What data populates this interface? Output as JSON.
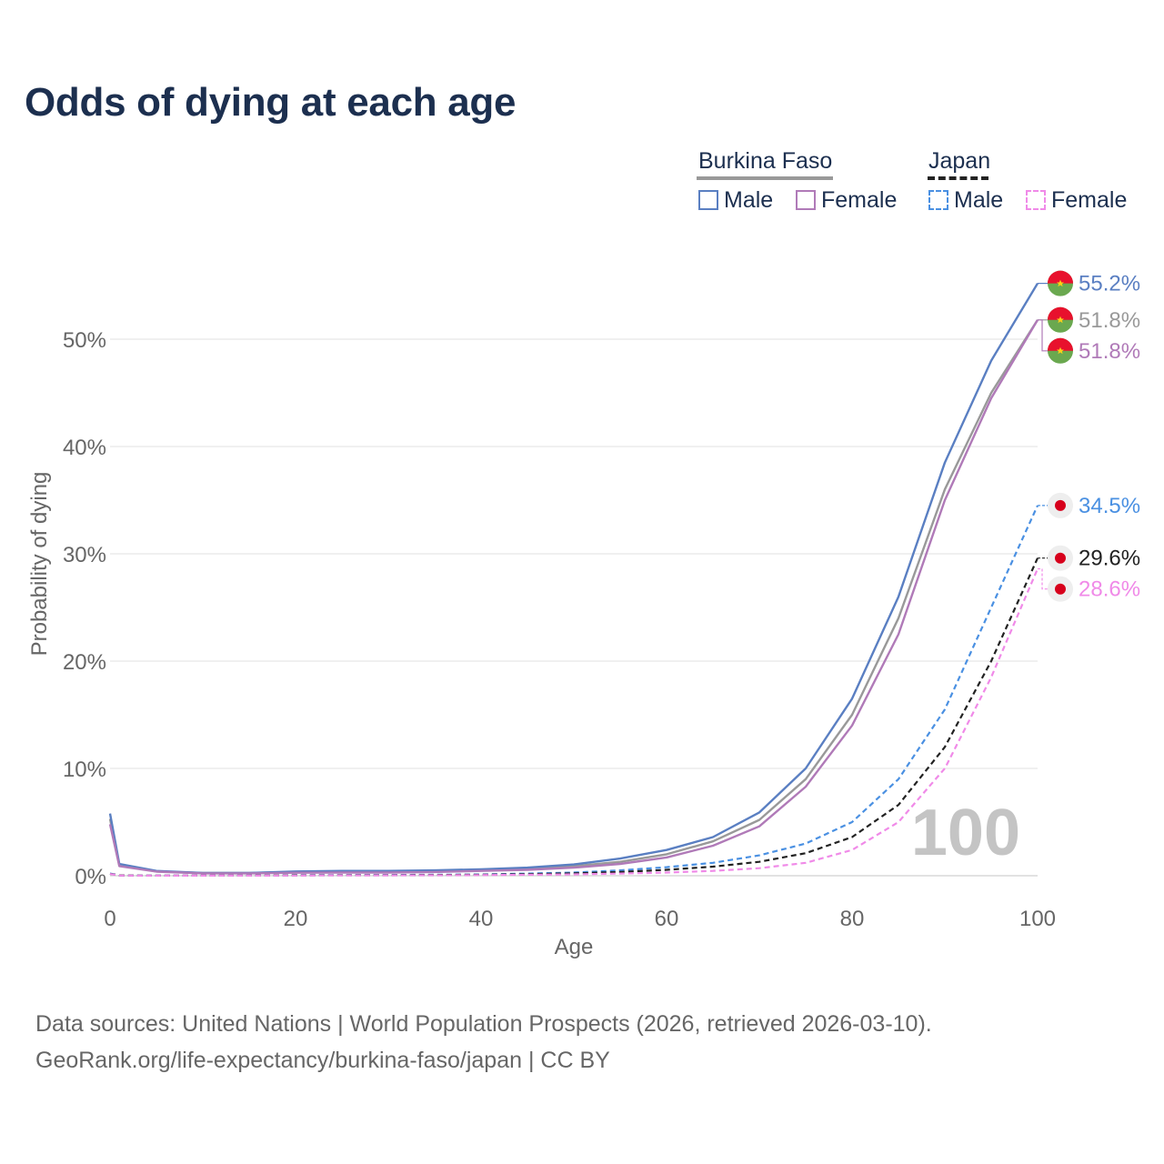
{
  "title": "Odds of dying at each age",
  "legend": {
    "groups": [
      {
        "name": "Burkina Faso",
        "style": "solid",
        "color": "#999999",
        "items": [
          {
            "label": "Male",
            "color": "#5a7fc2"
          },
          {
            "label": "Female",
            "color": "#b07ab8"
          }
        ]
      },
      {
        "name": "Japan",
        "style": "dashed",
        "color": "#222222",
        "items": [
          {
            "label": "Male",
            "color": "#4a90e2"
          },
          {
            "label": "Female",
            "color": "#f08ae8"
          }
        ]
      }
    ]
  },
  "chart_data": {
    "type": "line",
    "title": "Odds of dying at each age",
    "xlabel": "Age",
    "ylabel": "Probability of dying",
    "xlim": [
      0,
      100
    ],
    "ylim": [
      0,
      55
    ],
    "xticks": [
      "0",
      "20",
      "40",
      "60",
      "80",
      "100"
    ],
    "xtick_values": [
      0,
      20,
      40,
      60,
      80,
      100
    ],
    "yticks": [
      "0%",
      "10%",
      "20%",
      "30%",
      "40%",
      "50%"
    ],
    "ytick_values": [
      0,
      10,
      20,
      30,
      40,
      50
    ],
    "grid": true,
    "age_marker": "100",
    "x": [
      0,
      1,
      5,
      10,
      15,
      20,
      25,
      30,
      35,
      40,
      45,
      50,
      55,
      60,
      65,
      70,
      75,
      80,
      85,
      90,
      95,
      100
    ],
    "series": [
      {
        "name": "Burkina Faso Total",
        "country": "Burkina Faso",
        "color": "#999999",
        "dash": false,
        "flag": "burkina-faso",
        "end_label": "51.8%",
        "values": [
          5.3,
          1.0,
          0.4,
          0.25,
          0.25,
          0.35,
          0.35,
          0.35,
          0.4,
          0.5,
          0.65,
          0.9,
          1.3,
          2.0,
          3.2,
          5.2,
          9.0,
          15.0,
          24.0,
          36.0,
          45.0,
          51.8
        ]
      },
      {
        "name": "Burkina Faso Male",
        "country": "Burkina Faso",
        "color": "#5a7fc2",
        "dash": false,
        "flag": "burkina-faso",
        "end_label": "55.2%",
        "values": [
          5.8,
          1.1,
          0.45,
          0.25,
          0.25,
          0.4,
          0.45,
          0.45,
          0.5,
          0.6,
          0.75,
          1.05,
          1.6,
          2.4,
          3.6,
          5.9,
          10.0,
          16.5,
          26.0,
          38.5,
          48.0,
          55.2
        ]
      },
      {
        "name": "Burkina Faso Female",
        "country": "Burkina Faso",
        "color": "#b07ab8",
        "dash": false,
        "flag": "burkina-faso",
        "end_label": "51.8%",
        "values": [
          4.8,
          0.9,
          0.38,
          0.22,
          0.22,
          0.28,
          0.3,
          0.3,
          0.35,
          0.45,
          0.55,
          0.75,
          1.1,
          1.7,
          2.8,
          4.6,
          8.3,
          14.0,
          22.5,
          35.0,
          44.5,
          51.8
        ]
      },
      {
        "name": "Japan Male",
        "country": "Japan",
        "color": "#4a90e2",
        "dash": true,
        "flag": "japan",
        "end_label": "34.5%",
        "values": [
          0.2,
          0.03,
          0.01,
          0.01,
          0.02,
          0.05,
          0.06,
          0.07,
          0.09,
          0.12,
          0.2,
          0.3,
          0.5,
          0.8,
          1.2,
          1.9,
          3.0,
          5.0,
          9.0,
          15.5,
          25.0,
          34.5
        ]
      },
      {
        "name": "Japan Total",
        "country": "Japan",
        "color": "#222222",
        "dash": true,
        "flag": "japan",
        "end_label": "29.6%",
        "values": [
          0.18,
          0.03,
          0.01,
          0.01,
          0.02,
          0.04,
          0.05,
          0.05,
          0.07,
          0.09,
          0.14,
          0.22,
          0.35,
          0.55,
          0.85,
          1.3,
          2.1,
          3.6,
          6.6,
          12.0,
          20.0,
          29.6
        ]
      },
      {
        "name": "Japan Female",
        "country": "Japan",
        "color": "#f08ae8",
        "dash": true,
        "flag": "japan",
        "end_label": "28.6%",
        "values": [
          0.16,
          0.02,
          0.01,
          0.01,
          0.01,
          0.02,
          0.03,
          0.03,
          0.04,
          0.06,
          0.09,
          0.13,
          0.2,
          0.3,
          0.45,
          0.7,
          1.2,
          2.4,
          5.0,
          10.0,
          18.5,
          28.6
        ]
      }
    ]
  },
  "source": {
    "line1": "Data sources: United Nations | World Population Prospects (2026, retrieved 2026-03-10).",
    "line2": "GeoRank.org/life-expectancy/burkina-faso/japan | CC BY"
  }
}
